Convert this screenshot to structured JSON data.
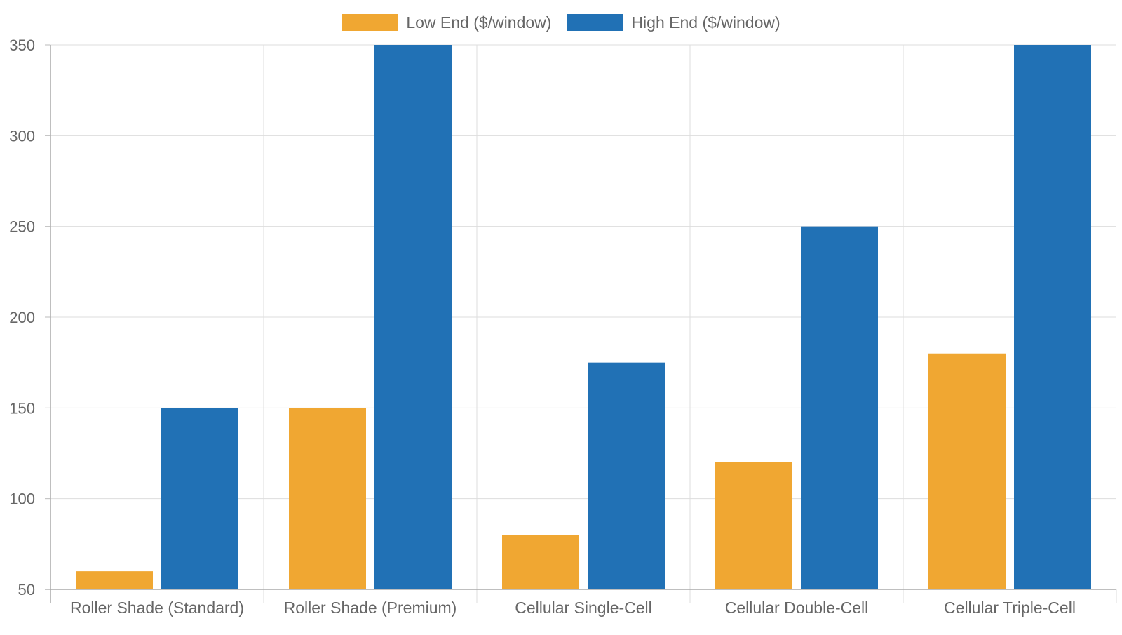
{
  "chart_data": {
    "type": "bar",
    "title": "",
    "xlabel": "",
    "ylabel": "",
    "categories": [
      "Roller Shade (Standard)",
      "Roller Shade (Premium)",
      "Cellular Single-Cell",
      "Cellular Double-Cell",
      "Cellular Triple-Cell"
    ],
    "series": [
      {
        "name": "Low End ($/window)",
        "color": "#f0a732",
        "values": [
          60,
          150,
          80,
          120,
          180
        ]
      },
      {
        "name": "High End ($/window)",
        "color": "#2171b5",
        "values": [
          150,
          350,
          175,
          250,
          350
        ]
      }
    ],
    "ylim": [
      50,
      350
    ],
    "yticks": [
      50,
      100,
      150,
      200,
      250,
      300,
      350
    ],
    "grid": true,
    "legend_position": "top-center"
  }
}
